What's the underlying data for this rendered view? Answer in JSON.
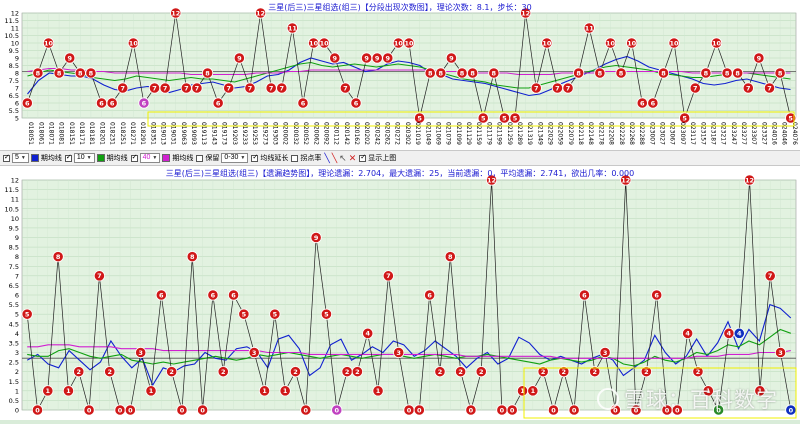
{
  "chart_data": [
    {
      "type": "line",
      "title": "三星(后三)三星组选(组三)【分段出现次数图】，理论次数：8.1，步长：30",
      "ylim": [
        5,
        12
      ],
      "yticks": [
        "12",
        "11.5",
        "11",
        "10.5",
        "10",
        "9.5",
        "9",
        "8.5",
        "8",
        "7.5",
        "7",
        "6.5",
        "6",
        "5.5",
        "5"
      ],
      "reference_line": 8.1,
      "xticks": [
        "018051",
        "018061",
        "018071",
        "018081",
        "018151",
        "018171",
        "018181",
        "018201",
        "018231",
        "018251",
        "018271",
        "018291",
        "018351",
        "019013",
        "019031",
        "019063",
        "019093",
        "019113",
        "019143",
        "019173",
        "019203",
        "019233",
        "019253",
        "019273",
        "019303",
        "020002",
        "020032",
        "020052",
        "020062",
        "020092",
        "020112",
        "020142",
        "020162",
        "020202",
        "020242",
        "020262",
        "020272",
        "020302",
        "021019",
        "021049",
        "021069",
        "021079",
        "021099",
        "021129",
        "021159",
        "021179",
        "021199",
        "021259",
        "021289",
        "021319",
        "021349",
        "022029",
        "022059",
        "022079",
        "022118",
        "022148",
        "022178",
        "022208",
        "022228",
        "022268",
        "022288",
        "023007",
        "023027",
        "023067",
        "023097",
        "023117",
        "023157",
        "023187",
        "023217",
        "023247",
        "023277",
        "023307",
        "023327",
        "024016",
        "024046",
        "024076"
      ],
      "points": [
        6,
        8,
        10,
        8,
        9,
        8,
        8,
        6,
        6,
        7,
        10,
        6,
        7,
        7,
        12,
        7,
        7,
        8,
        6,
        7,
        9,
        7,
        12,
        7,
        7,
        11,
        6,
        10,
        10,
        9,
        7,
        6,
        9,
        9,
        9,
        10,
        10,
        5,
        8,
        8,
        9,
        8,
        8,
        5,
        8,
        5,
        5,
        12,
        7,
        10,
        7,
        7,
        8,
        11,
        8,
        10,
        8,
        10,
        6,
        6,
        8,
        10,
        5,
        7,
        8,
        10,
        8,
        8,
        7,
        9,
        7,
        8,
        5
      ],
      "point_colors": {
        "11": "#c040c0",
        "8_at_66": "#2a8a2a",
        "6_at_70": "#1030c0"
      },
      "series": [
        {
          "color": "#1020d0",
          "values": [
            6.6,
            7.5,
            8.0,
            7.9,
            7.8,
            7.8,
            7.6,
            7.2,
            6.9,
            6.8,
            7.0,
            7.1,
            7.0,
            6.7,
            6.9,
            7.2,
            7.3,
            7.4,
            7.2,
            7.0,
            7.1,
            7.4,
            7.8,
            7.9,
            8.2,
            8.7,
            9.0,
            8.8,
            8.6,
            8.7,
            8.4,
            8.1,
            8.2,
            8.6,
            8.8,
            8.7,
            8.5,
            8.0,
            7.9,
            7.6,
            7.5,
            7.4,
            7.3,
            7.1,
            6.9,
            6.7,
            6.5,
            6.6,
            6.9,
            7.3,
            7.6,
            7.9,
            8.2,
            8.6,
            8.9,
            9.1,
            8.8,
            8.4,
            8.2,
            8.0,
            7.8,
            7.6,
            7.3,
            7.2,
            7.3,
            7.5,
            7.6,
            7.4,
            7.2,
            7.0,
            6.9
          ]
        },
        {
          "color": "#10a010",
          "values": [
            7.8,
            8.0,
            8.2,
            8.1,
            8.0,
            7.9,
            7.7,
            7.6,
            7.5,
            7.6,
            7.8,
            7.7,
            7.6,
            7.5,
            7.6,
            7.7,
            7.6,
            7.6,
            7.5,
            7.4,
            7.6,
            7.8,
            8.0,
            8.2,
            8.4,
            8.6,
            8.7,
            8.5,
            8.4,
            8.5,
            8.6,
            8.5,
            8.4,
            8.5,
            8.6,
            8.5,
            8.4,
            8.2,
            8.0,
            7.8,
            7.6,
            7.5,
            7.4,
            7.2,
            7.1,
            7.0,
            7.0,
            7.2,
            7.4,
            7.6,
            7.8,
            8.0,
            8.2,
            8.4,
            8.5,
            8.4,
            8.3,
            8.2,
            8.0,
            7.9,
            7.8,
            7.7,
            7.7,
            7.8,
            7.9,
            8.0,
            8.0,
            7.9,
            7.8,
            7.7,
            7.6
          ]
        },
        {
          "color": "#d020d0",
          "values": [
            8.1,
            8.2,
            8.3,
            8.3,
            8.2,
            8.2,
            8.1,
            8.1,
            8.0,
            8.0,
            8.0,
            8.0,
            8.0,
            8.0,
            8.0,
            7.9,
            7.9,
            7.9,
            7.9,
            7.9,
            7.9,
            8.0,
            8.0,
            8.0,
            8.1,
            8.1,
            8.2,
            8.2,
            8.2,
            8.2,
            8.2,
            8.2,
            8.2,
            8.2,
            8.2,
            8.2,
            8.2,
            8.2,
            8.1,
            8.1,
            8.1,
            8.0,
            8.0,
            8.0,
            8.0,
            7.9,
            7.9,
            7.9,
            7.9,
            8.0,
            8.0,
            8.0,
            8.0,
            8.1,
            8.1,
            8.1,
            8.1,
            8.1,
            8.1,
            8.1,
            8.1,
            8.0,
            8.0,
            8.0,
            8.0,
            8.0,
            8.0,
            8.0,
            8.0,
            8.0,
            8.0
          ]
        }
      ]
    },
    {
      "type": "line",
      "title": "三星(后三)三星组选(组三)【遗漏趋势图】，理论遗漏：2.704，最大遗漏：25，当前遗漏：0，平均遗漏：2.741，欲出几率：0.000",
      "ylim": [
        0,
        12
      ],
      "yticks": [
        "12",
        "11.5",
        "11",
        "10.5",
        "10",
        "9.5",
        "9",
        "8.5",
        "8",
        "7.5",
        "7",
        "6.5",
        "6",
        "5.5",
        "5",
        "4.5",
        "4",
        "3.5",
        "3",
        "2.5",
        "2",
        "1.5",
        "1",
        "0.5",
        "0"
      ],
      "reference_line": 2.704,
      "points": [
        5,
        0,
        1,
        8,
        1,
        2,
        0,
        7,
        2,
        0,
        0,
        3,
        1,
        6,
        2,
        0,
        8,
        0,
        6,
        2,
        6,
        5,
        3,
        1,
        5,
        1,
        2,
        0,
        9,
        5,
        0,
        2,
        2,
        4,
        1,
        7,
        3,
        0,
        0,
        6,
        2,
        8,
        2,
        0,
        2,
        12,
        0,
        0,
        1,
        1,
        2,
        0,
        2,
        0,
        6,
        2,
        3,
        0,
        12,
        0,
        2,
        6,
        0,
        0,
        4,
        2,
        1,
        0,
        4,
        4,
        12,
        1,
        7,
        3,
        0
      ],
      "point_colors": {
        "30": "#c040c0",
        "67": "#2a8a2a",
        "69": "#1030c0",
        "74": "#1030c0"
      },
      "series": [
        {
          "color": "#1020d0",
          "values": [
            2.6,
            2.9,
            2.4,
            2.2,
            3.1,
            2.6,
            2.1,
            2.5,
            3.6,
            2.8,
            2.2,
            2.7,
            1.3,
            2.2,
            2.0,
            2.3,
            2.4,
            3.0,
            2.7,
            2.6,
            3.2,
            3.3,
            3.0,
            2.2,
            3.7,
            3.9,
            3.2,
            1.8,
            2.2,
            3.4,
            3.7,
            2.6,
            2.9,
            3.3,
            3.0,
            3.6,
            3.4,
            2.8,
            3.1,
            3.6,
            3.2,
            2.8,
            2.2,
            2.7,
            3.0,
            2.4,
            2.7,
            3.8,
            3.5,
            2.9,
            2.6,
            2.8,
            2.6,
            2.4,
            2.7,
            2.9,
            2.6,
            1.8,
            2.2,
            2.6,
            3.9,
            3.0,
            2.4,
            2.8,
            3.7,
            2.8,
            3.5,
            4.6,
            3.2,
            4.2,
            3.6,
            5.5,
            5.3,
            4.8
          ]
        },
        {
          "color": "#10a010",
          "values": [
            2.9,
            2.8,
            2.8,
            3.1,
            3.2,
            3.0,
            2.8,
            2.7,
            2.8,
            2.9,
            2.6,
            2.5,
            2.4,
            2.5,
            2.4,
            2.5,
            2.6,
            2.7,
            2.8,
            2.7,
            2.6,
            2.7,
            2.9,
            2.8,
            2.9,
            3.0,
            2.9,
            2.8,
            2.7,
            2.8,
            2.9,
            2.8,
            2.7,
            2.8,
            2.9,
            2.9,
            2.8,
            2.7,
            2.8,
            2.9,
            2.8,
            2.7,
            2.8,
            2.8,
            2.9,
            2.8,
            2.7,
            2.6,
            2.5,
            2.4,
            2.6,
            2.7,
            2.6,
            2.5,
            2.6,
            2.8,
            2.7,
            2.4,
            2.3,
            2.5,
            2.8,
            2.6,
            2.5,
            2.7,
            3.0,
            2.9,
            3.1,
            3.4,
            3.3,
            3.6,
            3.4,
            3.8,
            4.2,
            4.0
          ]
        },
        {
          "color": "#d020d0",
          "values": [
            3.3,
            3.3,
            3.4,
            3.4,
            3.4,
            3.3,
            3.3,
            3.3,
            3.3,
            3.2,
            3.2,
            3.2,
            3.2,
            3.1,
            3.1,
            3.1,
            3.1,
            3.1,
            3.1,
            3.1,
            3.1,
            3.1,
            3.1,
            3.0,
            3.0,
            3.0,
            3.0,
            2.9,
            2.9,
            2.9,
            2.9,
            2.9,
            2.9,
            2.9,
            2.9,
            2.9,
            2.9,
            2.9,
            2.9,
            2.9,
            2.9,
            2.9,
            2.8,
            2.8,
            2.8,
            2.8,
            2.8,
            2.8,
            2.8,
            2.8,
            2.8,
            2.7,
            2.7,
            2.7,
            2.7,
            2.7,
            2.7,
            2.7,
            2.7,
            2.7,
            2.7,
            2.7,
            2.7,
            2.7,
            2.8,
            2.8,
            2.8,
            2.9,
            2.9,
            2.9,
            3.0,
            3.0,
            3.0,
            3.1
          ]
        }
      ]
    }
  ],
  "toolbar": {
    "period_value": "5",
    "period_label": "期均线",
    "period2_value": "10",
    "period2_label": "期均线",
    "period3_value": "40",
    "period3_label": "期均线",
    "hold_label": "保留",
    "range_value": "0-30",
    "mean_label": "均线延长",
    "turn_label": "拐点率",
    "show_label": "显示上图",
    "colors": {
      "ma5": "#1020d0",
      "ma10": "#10a010",
      "ma40": "#d020d0"
    }
  },
  "watermark": {
    "text": "雪球：百科数字"
  }
}
